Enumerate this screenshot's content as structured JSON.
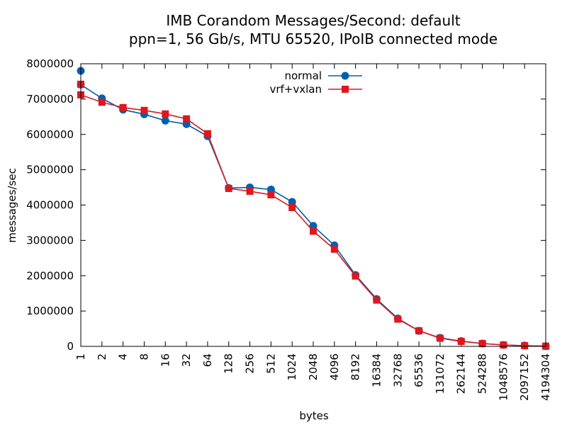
{
  "chart_data": {
    "type": "line",
    "title": "IMB Corandom Messages/Second: default",
    "subtitle": "ppn=1, 56 Gb/s, MTU 65520, IPoIB connected mode",
    "xlabel": "bytes",
    "ylabel": "messages/sec",
    "categories": [
      "1",
      "2",
      "4",
      "8",
      "16",
      "32",
      "64",
      "128",
      "256",
      "512",
      "1024",
      "2048",
      "4096",
      "8192",
      "16384",
      "32768",
      "65536",
      "131072",
      "262144",
      "524288",
      "1048576",
      "2097152",
      "4194304"
    ],
    "ylim": [
      0,
      8000000
    ],
    "yticks": [
      "0",
      "1000000",
      "2000000",
      "3000000",
      "4000000",
      "5000000",
      "6000000",
      "7000000",
      "8000000"
    ],
    "grid": false,
    "legend_position": "top-right",
    "series": [
      {
        "name": "normal",
        "color": "#0060ad",
        "marker": "circle",
        "values": [
          7410000,
          7020000,
          6700000,
          6570000,
          6390000,
          6290000,
          5950000,
          4480000,
          4500000,
          4440000,
          4090000,
          3410000,
          2860000,
          2020000,
          1340000,
          790000,
          440000,
          240000,
          150000,
          80000,
          40000,
          20000,
          5000
        ],
        "extra_points": [
          {
            "x": "1",
            "y": 7800000
          }
        ]
      },
      {
        "name": "vrf+vxlan",
        "color": "#dd181f",
        "marker": "square",
        "values": [
          7120000,
          6910000,
          6760000,
          6680000,
          6580000,
          6440000,
          6020000,
          4470000,
          4390000,
          4290000,
          3930000,
          3260000,
          2750000,
          1990000,
          1310000,
          770000,
          440000,
          230000,
          140000,
          80000,
          40000,
          20000,
          5000
        ],
        "extra_points": [
          {
            "x": "1",
            "y": 7420000
          }
        ]
      }
    ]
  }
}
